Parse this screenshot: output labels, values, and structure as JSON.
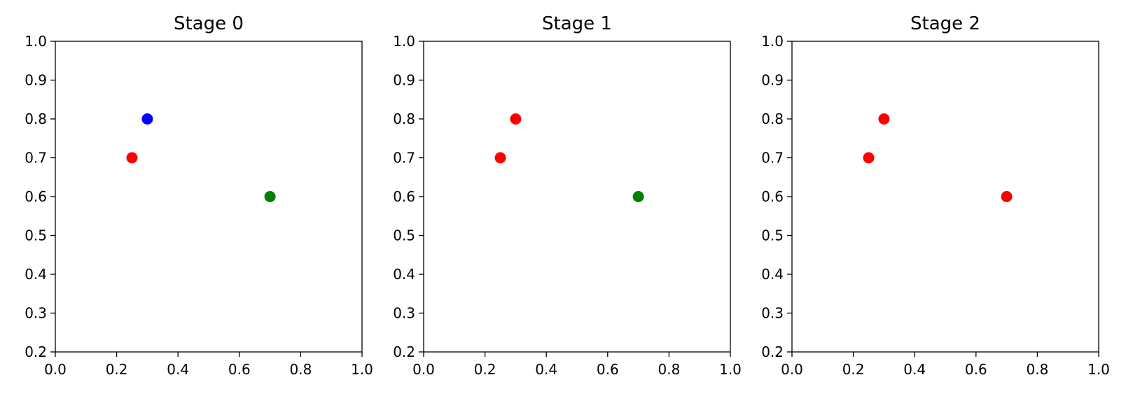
{
  "chart_data": [
    {
      "type": "scatter",
      "title": "Stage 0",
      "xlabel": "",
      "ylabel": "",
      "xlim": [
        0.0,
        1.0
      ],
      "ylim": [
        0.2,
        1.0
      ],
      "x_ticks": [
        "0.0",
        "0.2",
        "0.4",
        "0.6",
        "0.8",
        "1.0"
      ],
      "y_ticks": [
        "0.2",
        "0.3",
        "0.4",
        "0.5",
        "0.6",
        "0.7",
        "0.8",
        "0.9",
        "1.0"
      ],
      "grid": false,
      "points": [
        {
          "x": 0.3,
          "y": 0.8,
          "color": "#0000ff"
        },
        {
          "x": 0.25,
          "y": 0.7,
          "color": "#ff0000"
        },
        {
          "x": 0.7,
          "y": 0.6,
          "color": "#008000"
        }
      ]
    },
    {
      "type": "scatter",
      "title": "Stage 1",
      "xlabel": "",
      "ylabel": "",
      "xlim": [
        0.0,
        1.0
      ],
      "ylim": [
        0.2,
        1.0
      ],
      "x_ticks": [
        "0.0",
        "0.2",
        "0.4",
        "0.6",
        "0.8",
        "1.0"
      ],
      "y_ticks": [
        "0.2",
        "0.3",
        "0.4",
        "0.5",
        "0.6",
        "0.7",
        "0.8",
        "0.9",
        "1.0"
      ],
      "grid": false,
      "points": [
        {
          "x": 0.3,
          "y": 0.8,
          "color": "#ff0000"
        },
        {
          "x": 0.25,
          "y": 0.7,
          "color": "#ff0000"
        },
        {
          "x": 0.7,
          "y": 0.6,
          "color": "#008000"
        }
      ]
    },
    {
      "type": "scatter",
      "title": "Stage 2",
      "xlabel": "",
      "ylabel": "",
      "xlim": [
        0.0,
        1.0
      ],
      "ylim": [
        0.2,
        1.0
      ],
      "x_ticks": [
        "0.0",
        "0.2",
        "0.4",
        "0.6",
        "0.8",
        "1.0"
      ],
      "y_ticks": [
        "0.2",
        "0.3",
        "0.4",
        "0.5",
        "0.6",
        "0.7",
        "0.8",
        "0.9",
        "1.0"
      ],
      "grid": false,
      "points": [
        {
          "x": 0.3,
          "y": 0.8,
          "color": "#ff0000"
        },
        {
          "x": 0.25,
          "y": 0.7,
          "color": "#ff0000"
        },
        {
          "x": 0.7,
          "y": 0.6,
          "color": "#ff0000"
        }
      ]
    }
  ]
}
